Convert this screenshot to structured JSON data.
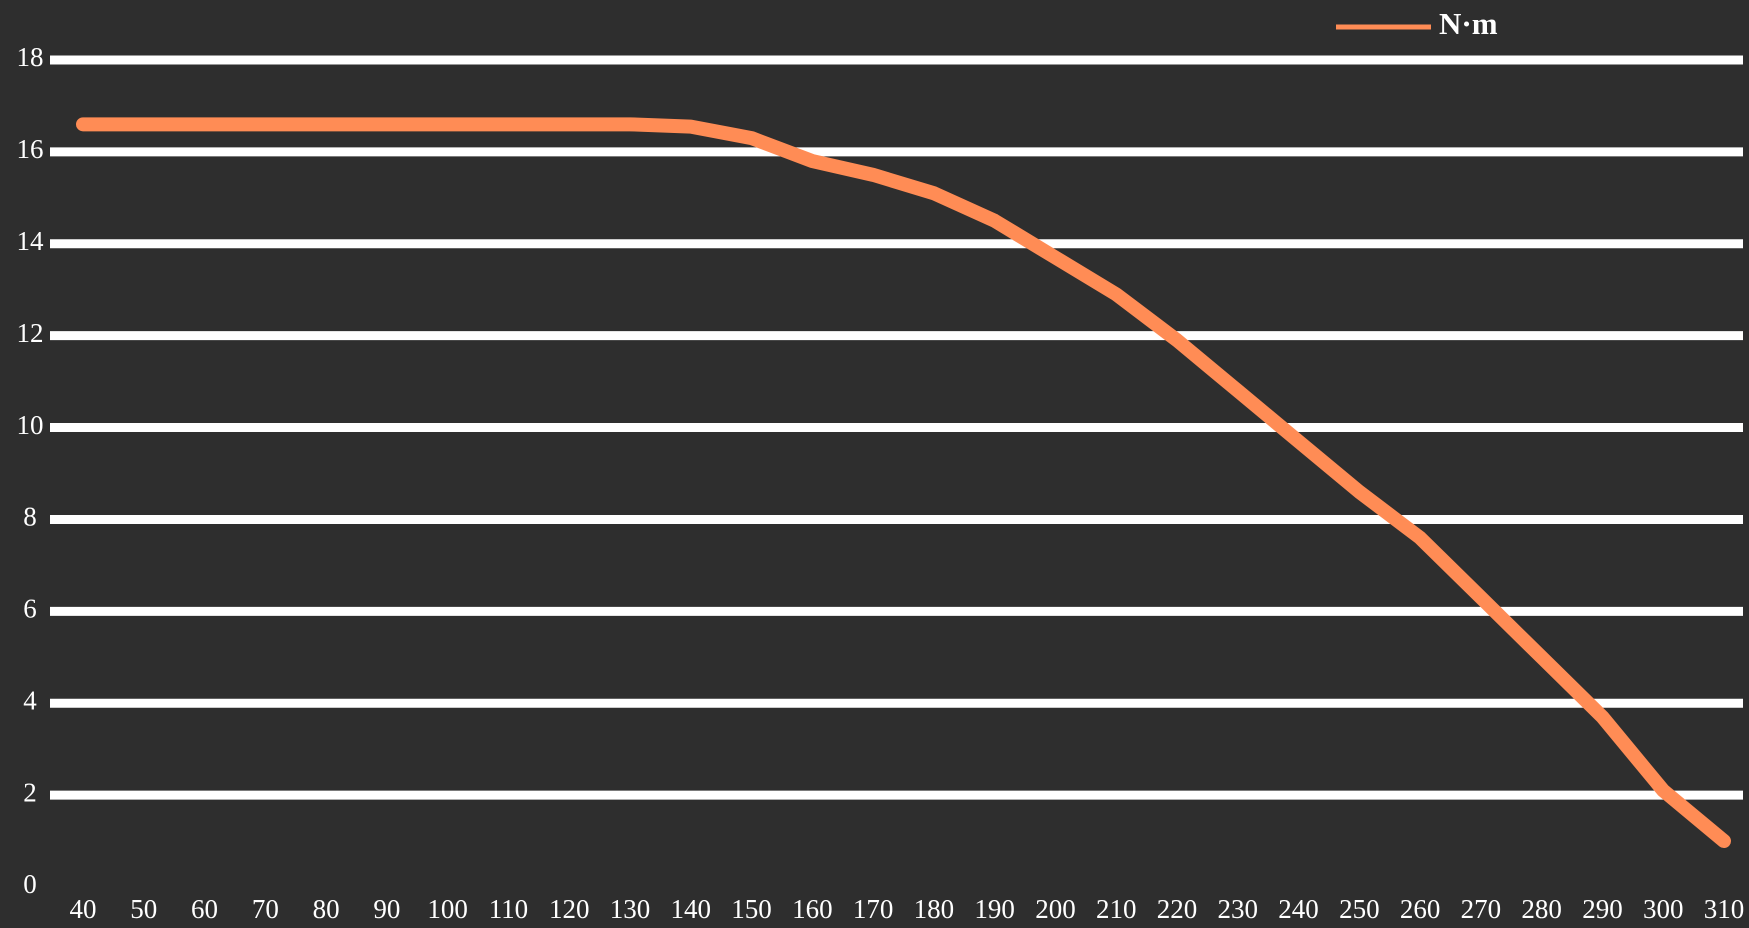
{
  "chart_data": {
    "type": "line",
    "categories": [
      "40",
      "50",
      "60",
      "70",
      "80",
      "90",
      "100",
      "110",
      "120",
      "130",
      "140",
      "150",
      "160",
      "170",
      "180",
      "190",
      "200",
      "210",
      "220",
      "230",
      "240",
      "250",
      "260",
      "270",
      "280",
      "290",
      "300",
      "310"
    ],
    "series": [
      {
        "name": "N·m",
        "color": "#ff8c55",
        "values": [
          16.6,
          16.6,
          16.6,
          16.6,
          16.6,
          16.6,
          16.6,
          16.6,
          16.6,
          16.6,
          16.55,
          16.3,
          15.8,
          15.5,
          15.1,
          14.5,
          13.7,
          12.9,
          11.9,
          10.8,
          9.7,
          8.6,
          7.6,
          6.3,
          5.0,
          3.7,
          2.1,
          1.0
        ]
      }
    ],
    "ylim": [
      0,
      18
    ],
    "yticks": [
      0,
      2,
      4,
      6,
      8,
      10,
      12,
      14,
      16,
      18
    ],
    "grid": true,
    "legend": "top-right"
  }
}
